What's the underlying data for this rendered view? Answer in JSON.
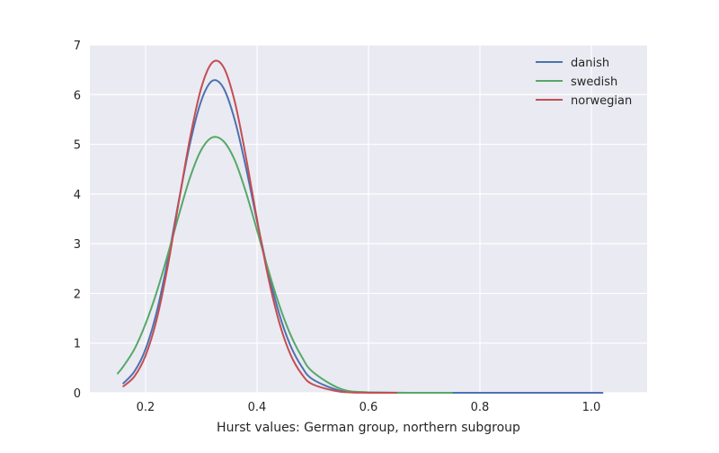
{
  "chart_data": {
    "type": "line",
    "title": "",
    "xlabel": "Hurst values: German group, northern subgroup",
    "ylabel": "",
    "xlim": [
      0.1,
      1.1
    ],
    "ylim": [
      0,
      7
    ],
    "xticks": [
      0.2,
      0.4,
      0.6,
      0.8,
      1.0
    ],
    "xtick_labels": [
      "0.2",
      "0.4",
      "0.6",
      "0.8",
      "1.0"
    ],
    "yticks": [
      0,
      1,
      2,
      3,
      4,
      5,
      6,
      7
    ],
    "ytick_labels": [
      "0",
      "1",
      "2",
      "3",
      "4",
      "5",
      "6",
      "7"
    ],
    "grid": true,
    "legend_position": "top-right",
    "x": [
      0.15,
      0.16,
      0.18,
      0.2,
      0.22,
      0.24,
      0.26,
      0.28,
      0.3,
      0.32,
      0.34,
      0.36,
      0.38,
      0.4,
      0.42,
      0.44,
      0.46,
      0.48,
      0.5,
      0.55,
      0.6,
      0.7,
      0.8,
      0.9,
      1.02
    ],
    "series": [
      {
        "name": "danish",
        "color": "#4c72b0",
        "x_start": 0.16,
        "x_end": 1.02,
        "values": [
          null,
          0.19,
          0.43,
          0.88,
          1.63,
          2.68,
          3.89,
          5.03,
          5.88,
          6.28,
          6.13,
          5.49,
          4.54,
          3.45,
          2.43,
          1.58,
          0.95,
          0.53,
          0.27,
          0.04,
          0.01,
          0.0,
          0.0,
          0.0,
          0.0
        ]
      },
      {
        "name": "swedish",
        "color": "#55a868",
        "x_start": 0.15,
        "x_end": 0.75,
        "values": [
          0.39,
          0.53,
          0.88,
          1.39,
          2.03,
          2.79,
          3.59,
          4.34,
          4.89,
          5.14,
          5.06,
          4.68,
          4.04,
          3.27,
          2.48,
          1.76,
          1.17,
          0.73,
          0.42,
          0.08,
          0.01,
          0.0,
          null,
          null,
          null
        ]
      },
      {
        "name": "norwegian",
        "color": "#c44e52",
        "x_start": 0.155,
        "x_end": 0.65,
        "values": [
          null,
          0.13,
          0.33,
          0.75,
          1.48,
          2.56,
          3.87,
          5.14,
          6.14,
          6.65,
          6.55,
          5.86,
          4.75,
          3.49,
          2.33,
          1.41,
          0.77,
          0.38,
          0.17,
          0.02,
          0.0,
          null,
          null,
          null,
          null
        ]
      }
    ]
  }
}
